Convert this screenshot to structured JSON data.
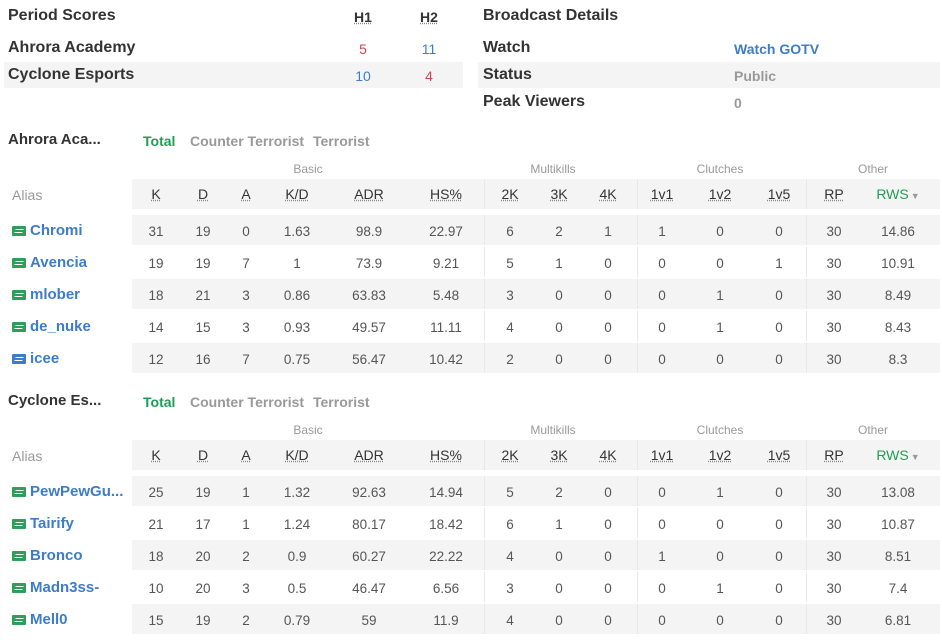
{
  "period_scores": {
    "title": "Period Scores",
    "h1": "H1",
    "h2": "H2",
    "teams": [
      {
        "name": "Ahrora Academy",
        "h1": "5",
        "h2": "11",
        "h1_color": "#d9434d",
        "h2_color": "#3d7cc9"
      },
      {
        "name": "Cyclone Esports",
        "h1": "10",
        "h2": "4",
        "h1_color": "#3d7cc9",
        "h2_color": "#d9434d"
      }
    ]
  },
  "broadcast": {
    "title": "Broadcast Details",
    "rows": [
      {
        "label": "Watch",
        "value": "Watch GOTV",
        "link": true
      },
      {
        "label": "Status",
        "value": "Public",
        "link": false
      },
      {
        "label": "Peak Viewers",
        "value": "0",
        "link": false
      }
    ]
  },
  "tabs": {
    "total": "Total",
    "ct": "Counter Terrorist",
    "t": "Terrorist"
  },
  "groups": {
    "basic": "Basic",
    "multikills": "Multikills",
    "clutches": "Clutches",
    "other": "Other"
  },
  "columns": {
    "alias": "Alias",
    "k": "K",
    "d": "D",
    "a": "A",
    "kd": "K/D",
    "adr": "ADR",
    "hs": "HS%",
    "k2": "2K",
    "k3": "3K",
    "k4": "4K",
    "c1": "1v1",
    "c2": "1v2",
    "c5": "1v5",
    "rp": "RP",
    "rws": "RWS"
  },
  "teams": [
    {
      "name": "Ahrora Aca...",
      "players": [
        {
          "alias": "Chromi",
          "flag": "green",
          "k": "31",
          "d": "19",
          "a": "0",
          "kd": "1.63",
          "adr": "98.9",
          "hs": "22.97",
          "k2": "6",
          "k3": "2",
          "k4": "1",
          "c1": "1",
          "c2": "0",
          "c5": "0",
          "rp": "30",
          "rws": "14.86"
        },
        {
          "alias": "Avencia",
          "flag": "green",
          "k": "19",
          "d": "19",
          "a": "7",
          "kd": "1",
          "adr": "73.9",
          "hs": "9.21",
          "k2": "5",
          "k3": "1",
          "k4": "0",
          "c1": "0",
          "c2": "0",
          "c5": "1",
          "rp": "30",
          "rws": "10.91"
        },
        {
          "alias": "mlober",
          "flag": "green",
          "k": "18",
          "d": "21",
          "a": "3",
          "kd": "0.86",
          "adr": "63.83",
          "hs": "5.48",
          "k2": "3",
          "k3": "0",
          "k4": "0",
          "c1": "0",
          "c2": "1",
          "c5": "0",
          "rp": "30",
          "rws": "8.49"
        },
        {
          "alias": "de_nuke",
          "flag": "green",
          "k": "14",
          "d": "15",
          "a": "3",
          "kd": "0.93",
          "adr": "49.57",
          "hs": "11.11",
          "k2": "4",
          "k3": "0",
          "k4": "0",
          "c1": "0",
          "c2": "1",
          "c5": "0",
          "rp": "30",
          "rws": "8.43"
        },
        {
          "alias": "icee",
          "flag": "blue",
          "k": "12",
          "d": "16",
          "a": "7",
          "kd": "0.75",
          "adr": "56.47",
          "hs": "10.42",
          "k2": "2",
          "k3": "0",
          "k4": "0",
          "c1": "0",
          "c2": "0",
          "c5": "0",
          "rp": "30",
          "rws": "8.3"
        }
      ]
    },
    {
      "name": "Cyclone Es...",
      "players": [
        {
          "alias": "PewPewGu...",
          "flag": "green",
          "k": "25",
          "d": "19",
          "a": "1",
          "kd": "1.32",
          "adr": "92.63",
          "hs": "14.94",
          "k2": "5",
          "k3": "2",
          "k4": "0",
          "c1": "0",
          "c2": "1",
          "c5": "0",
          "rp": "30",
          "rws": "13.08"
        },
        {
          "alias": "Tairify",
          "flag": "green",
          "k": "21",
          "d": "17",
          "a": "1",
          "kd": "1.24",
          "adr": "80.17",
          "hs": "18.42",
          "k2": "6",
          "k3": "1",
          "k4": "0",
          "c1": "0",
          "c2": "0",
          "c5": "0",
          "rp": "30",
          "rws": "10.87"
        },
        {
          "alias": "Bronco",
          "flag": "green",
          "k": "18",
          "d": "20",
          "a": "2",
          "kd": "0.9",
          "adr": "60.27",
          "hs": "22.22",
          "k2": "4",
          "k3": "0",
          "k4": "0",
          "c1": "1",
          "c2": "0",
          "c5": "0",
          "rp": "30",
          "rws": "8.51"
        },
        {
          "alias": "Madn3ss-",
          "flag": "green",
          "k": "10",
          "d": "20",
          "a": "3",
          "kd": "0.5",
          "adr": "46.47",
          "hs": "6.56",
          "k2": "3",
          "k3": "0",
          "k4": "0",
          "c1": "0",
          "c2": "1",
          "c5": "0",
          "rp": "30",
          "rws": "7.4"
        },
        {
          "alias": "Mell0",
          "flag": "green",
          "k": "15",
          "d": "19",
          "a": "2",
          "kd": "0.79",
          "adr": "59",
          "hs": "11.9",
          "k2": "4",
          "k3": "0",
          "k4": "0",
          "c1": "0",
          "c2": "0",
          "c5": "0",
          "rp": "30",
          "rws": "6.81"
        }
      ]
    }
  ]
}
